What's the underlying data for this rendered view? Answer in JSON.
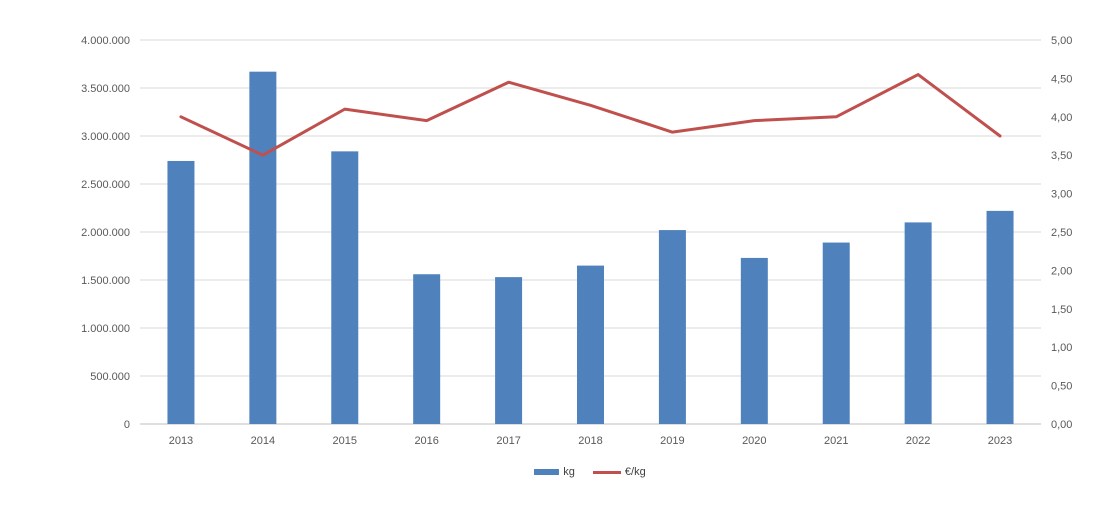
{
  "chart_data": {
    "type": "combo",
    "categories": [
      "2013",
      "2014",
      "2015",
      "2016",
      "2017",
      "2018",
      "2019",
      "2020",
      "2021",
      "2022",
      "2023"
    ],
    "series": [
      {
        "name": "kg",
        "type": "bar",
        "axis": "left",
        "color": "#4F81BD",
        "values": [
          2740000,
          3670000,
          2840000,
          1560000,
          1530000,
          1650000,
          2020000,
          1730000,
          1890000,
          2100000,
          2220000
        ]
      },
      {
        "name": "€/kg",
        "type": "line",
        "axis": "right",
        "color": "#C0504D",
        "values": [
          4.0,
          3.5,
          4.1,
          3.95,
          4.45,
          4.15,
          3.8,
          3.95,
          4.0,
          4.55,
          3.75
        ]
      }
    ],
    "left_axis": {
      "min": 0,
      "max": 4000000,
      "step": 500000,
      "tick_labels": [
        "0",
        "500.000",
        "1.000.000",
        "1.500.000",
        "2.000.000",
        "2.500.000",
        "3.000.000",
        "3.500.000",
        "4.000.000"
      ]
    },
    "right_axis": {
      "min": 0,
      "max": 5,
      "step": 0.5,
      "tick_labels": [
        "0,00",
        "0,50",
        "1,00",
        "1,50",
        "2,00",
        "2,50",
        "3,00",
        "3,50",
        "4,00",
        "4,50",
        "5,00"
      ]
    },
    "grid": {
      "line_color": "#D9D9D9",
      "baseline_color": "#BFBFBF"
    },
    "legend_position": "bottom",
    "title": "",
    "xlabel": "",
    "ylabel_left": "",
    "ylabel_right": ""
  },
  "legend": {
    "items": [
      {
        "label": "kg"
      },
      {
        "label": "€/kg"
      }
    ]
  }
}
